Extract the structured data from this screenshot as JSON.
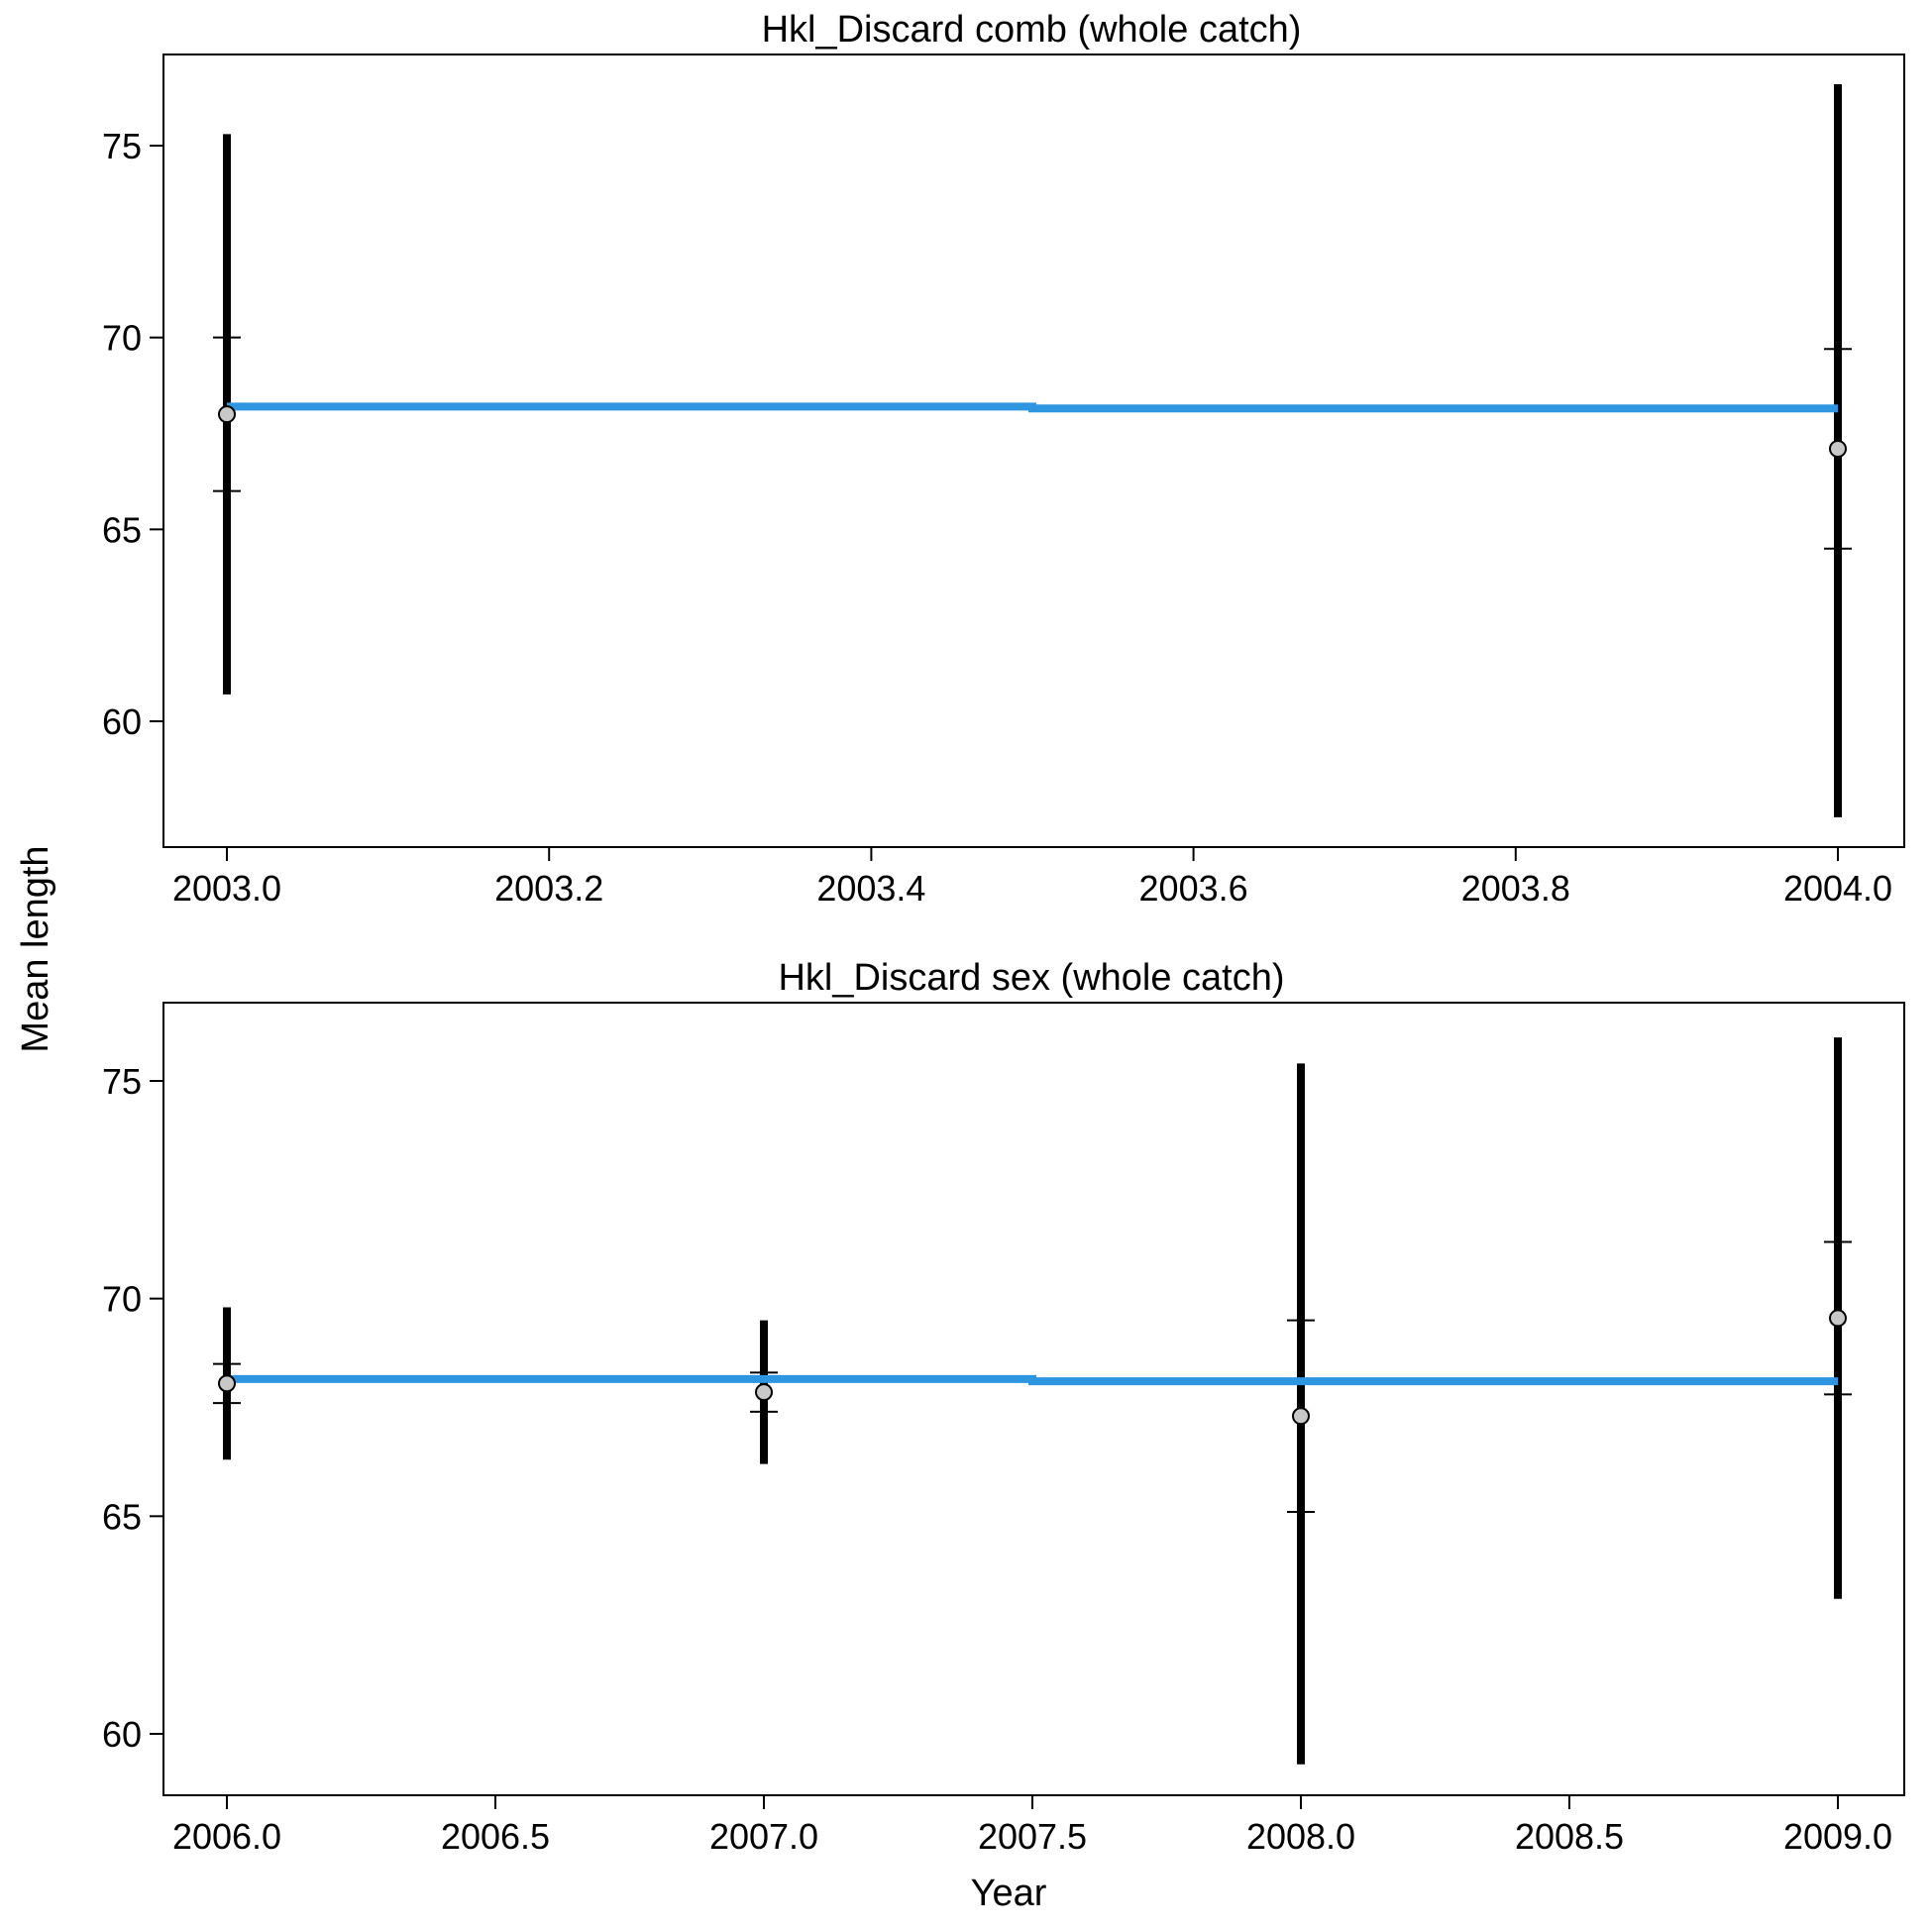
{
  "ylabel": "Mean length",
  "xlabel": "Year",
  "colors": {
    "fit_line": "#2e96e0",
    "interval": "#000000",
    "point_fill": "#c8c8c8",
    "point_stroke": "#000000"
  },
  "chart_data": [
    {
      "type": "scatter",
      "title": "Hkl_Discard comb (whole catch)",
      "xlim": [
        2002.9,
        2004.0
      ],
      "ylim": [
        57.5,
        77.0
      ],
      "x_ticks": [
        2003.0,
        2003.2,
        2003.4,
        2003.6,
        2003.8,
        2004.0
      ],
      "x_tick_labels": [
        "2003.0",
        "2003.2",
        "2003.4",
        "2003.6",
        "2003.8",
        "2004.0"
      ],
      "y_ticks": [
        60,
        65,
        70,
        75
      ],
      "y_tick_labels": [
        "60",
        "65",
        "70",
        "75"
      ],
      "observed": [
        {
          "x": 2003.0,
          "y": 68.0,
          "lower": 60.7,
          "upper": 75.3,
          "inner_lower": 66.0,
          "inner_upper": 70.0
        },
        {
          "x": 2004.0,
          "y": 67.1,
          "lower": 57.5,
          "upper": 76.6,
          "inner_lower": 64.5,
          "inner_upper": 69.7
        }
      ],
      "expected": [
        {
          "x": 2003.0,
          "y": 68.2
        },
        {
          "x": 2003.5,
          "y": 68.2
        },
        {
          "x": 2003.5,
          "y": 68.15
        },
        {
          "x": 2004.0,
          "y": 68.15
        }
      ]
    },
    {
      "type": "scatter",
      "title": "Hkl_Discard sex (whole catch)",
      "xlim": [
        2005.88,
        2009.0
      ],
      "ylim": [
        59.4,
        76.0
      ],
      "x_ticks": [
        2006.0,
        2006.5,
        2007.0,
        2007.5,
        2008.0,
        2008.5,
        2009.0
      ],
      "x_tick_labels": [
        "2006.0",
        "2006.5",
        "2007.0",
        "2007.5",
        "2008.0",
        "2008.5",
        "2009.0"
      ],
      "y_ticks": [
        60,
        65,
        70,
        75
      ],
      "y_tick_labels": [
        "60",
        "65",
        "70",
        "75"
      ],
      "observed": [
        {
          "x": 2006.0,
          "y": 68.05,
          "lower": 66.3,
          "upper": 69.8,
          "inner_lower": 67.6,
          "inner_upper": 68.5
        },
        {
          "x": 2007.0,
          "y": 67.85,
          "lower": 66.2,
          "upper": 69.5,
          "inner_lower": 67.4,
          "inner_upper": 68.3
        },
        {
          "x": 2008.0,
          "y": 67.3,
          "lower": 59.3,
          "upper": 75.4,
          "inner_lower": 65.1,
          "inner_upper": 69.5
        },
        {
          "x": 2009.0,
          "y": 69.55,
          "lower": 63.1,
          "upper": 76.0,
          "inner_lower": 67.8,
          "inner_upper": 71.3
        }
      ],
      "expected": [
        {
          "x": 2006.0,
          "y": 68.15
        },
        {
          "x": 2007.5,
          "y": 68.15
        },
        {
          "x": 2007.5,
          "y": 68.1
        },
        {
          "x": 2009.0,
          "y": 68.1
        }
      ]
    }
  ]
}
